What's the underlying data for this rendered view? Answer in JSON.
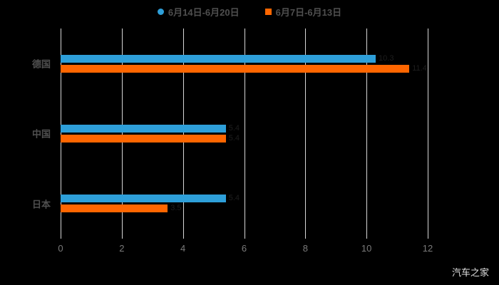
{
  "watermark": "汽车之家",
  "chart_data": {
    "type": "bar",
    "orientation": "horizontal",
    "title": "",
    "xlabel": "",
    "ylabel": "",
    "background": "#000000",
    "grid": true,
    "legend_position": "top",
    "categories": [
      "德国",
      "中国",
      "日本"
    ],
    "series": [
      {
        "name": "6月14日-6月20日",
        "marker": "circle",
        "color": "#2e9fd9",
        "values": [
          10.3,
          5.4,
          5.4
        ]
      },
      {
        "name": "6月7日-6月13日",
        "marker": "square",
        "color": "#ff6600",
        "values": [
          11.4,
          5.4,
          3.5
        ]
      }
    ],
    "xlim": [
      0,
      12
    ],
    "x_ticks": [
      0,
      2,
      4,
      6,
      8,
      10,
      12
    ]
  }
}
